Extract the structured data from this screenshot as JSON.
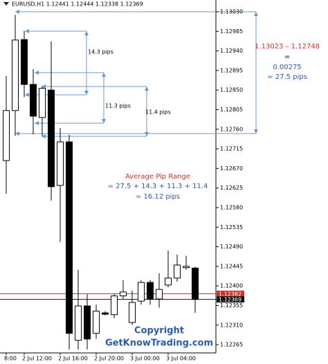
{
  "chart_data": {
    "type": "candlestick",
    "header": "EURUSD,H1 1.12441 1.12444 1.12338 1.12369",
    "categories": [
      "8:00",
      null,
      "2 Jul 12:00",
      null,
      null,
      null,
      "2 Jul 16:00",
      null,
      null,
      null,
      "2 Jul 20:00",
      null,
      null,
      null,
      "3 Jul 00:00",
      null,
      null,
      null,
      "3 Jul 04:00",
      null,
      null,
      null
    ],
    "open": [
      1.12688,
      1.12803,
      1.12966,
      1.12863,
      1.12787,
      1.1285,
      1.12631,
      1.12731,
      1.12275,
      1.12354,
      1.12291,
      1.12338,
      1.12334,
      1.12377,
      1.12316,
      1.12365,
      1.12408,
      1.1237,
      1.12402,
      1.12418,
      1.12442,
      1.12441
    ],
    "high": [
      1.12882,
      1.13023,
      1.12986,
      1.12898,
      1.12858,
      1.12962,
      1.12763,
      1.12747,
      1.12437,
      1.12381,
      1.12357,
      1.12342,
      1.12381,
      1.12413,
      1.12389,
      1.12413,
      1.12413,
      1.12429,
      1.12481,
      1.12472,
      1.12469,
      1.12444
    ],
    "low": [
      1.12612,
      1.12745,
      1.12834,
      1.12748,
      1.12745,
      1.12596,
      1.12501,
      1.12254,
      1.12254,
      1.12254,
      1.12278,
      1.12332,
      1.12326,
      1.1237,
      1.1231,
      1.12357,
      1.12357,
      1.1235,
      1.12397,
      1.1241,
      1.12437,
      1.12338
    ],
    "close": [
      1.12803,
      1.12965,
      1.12863,
      1.1279,
      1.12854,
      1.12628,
      1.12731,
      1.12291,
      1.12354,
      1.12278,
      1.12342,
      1.12335,
      1.12377,
      1.12386,
      1.12362,
      1.12408,
      1.1237,
      1.12392,
      1.12418,
      1.12448,
      1.12445,
      1.12369
    ],
    "ylim": [
      1.12246,
      1.13057
    ],
    "yticks": [
      {
        "value": 1.1303,
        "label": "1.13030"
      },
      1.12985,
      {
        "value": 1.1294,
        "label": "1.12940"
      },
      1.12895,
      {
        "value": 1.1285,
        "label": "1.12850"
      },
      1.12805,
      {
        "value": 1.1276,
        "label": "1.12760"
      },
      1.12715,
      {
        "value": 1.1267,
        "label": "1.12670"
      },
      1.12625,
      {
        "value": 1.1258,
        "label": "1.12580"
      },
      1.12535,
      {
        "value": 1.1249,
        "label": "1.12490"
      },
      1.12445,
      {
        "value": 1.124,
        "label": "1.12400"
      },
      1.12355,
      {
        "value": 1.1231,
        "label": "1.12310"
      },
      1.12265
    ],
    "price_lines": [
      {
        "value": 1.12382,
        "color": "#d0302a"
      },
      {
        "value": 1.12369,
        "color": "#111111"
      }
    ],
    "grid": false,
    "annotations": [
      "14.3 pips",
      "11.3 pips",
      "11.4 pips",
      "1.13023 – 1.12748",
      "=",
      "0.00275",
      "= 27.5 pips",
      "Average Pip Range",
      "= 27.5 + 14.3 + 11.3 + 11.4",
      "= 16.12 pips",
      "Copyright",
      "GetKnowTrading.com"
    ]
  }
}
